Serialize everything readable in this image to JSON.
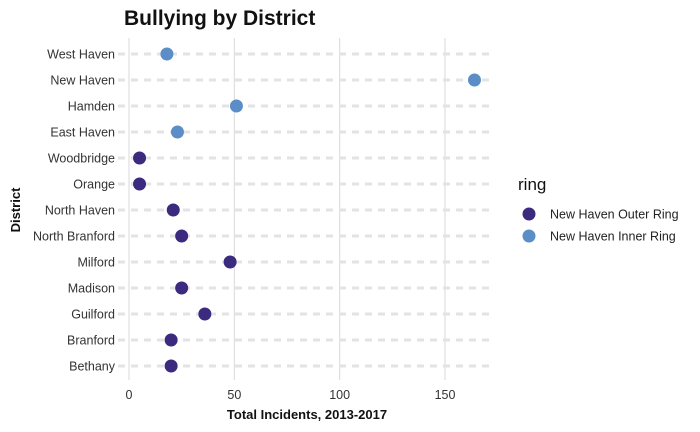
{
  "chart_data": {
    "type": "scatter",
    "title": "Bullying by District",
    "xlabel": "Total Incidents, 2013-2017",
    "ylabel": "District",
    "xlim": [
      0,
      170
    ],
    "xticks": [
      0,
      50,
      100,
      150
    ],
    "categories": [
      "West Haven",
      "New Haven",
      "Hamden",
      "East Haven",
      "Woodbridge",
      "Orange",
      "North Haven",
      "North Branford",
      "Milford",
      "Madison",
      "Guilford",
      "Branford",
      "Bethany"
    ],
    "series": [
      {
        "name": "New Haven Outer Ring",
        "color": "#3b2a7e",
        "points": [
          {
            "category": "Woodbridge",
            "value": 5
          },
          {
            "category": "Orange",
            "value": 5
          },
          {
            "category": "North Haven",
            "value": 21
          },
          {
            "category": "North Branford",
            "value": 25
          },
          {
            "category": "Milford",
            "value": 48
          },
          {
            "category": "Madison",
            "value": 25
          },
          {
            "category": "Guilford",
            "value": 36
          },
          {
            "category": "Branford",
            "value": 20
          },
          {
            "category": "Bethany",
            "value": 20
          }
        ]
      },
      {
        "name": "New Haven Inner Ring",
        "color": "#5b8ec6",
        "points": [
          {
            "category": "West Haven",
            "value": 18
          },
          {
            "category": "New Haven",
            "value": 164
          },
          {
            "category": "Hamden",
            "value": 51
          },
          {
            "category": "East Haven",
            "value": 23
          }
        ]
      }
    ],
    "legend": {
      "title": "ring",
      "position": "right"
    },
    "grid": true
  }
}
